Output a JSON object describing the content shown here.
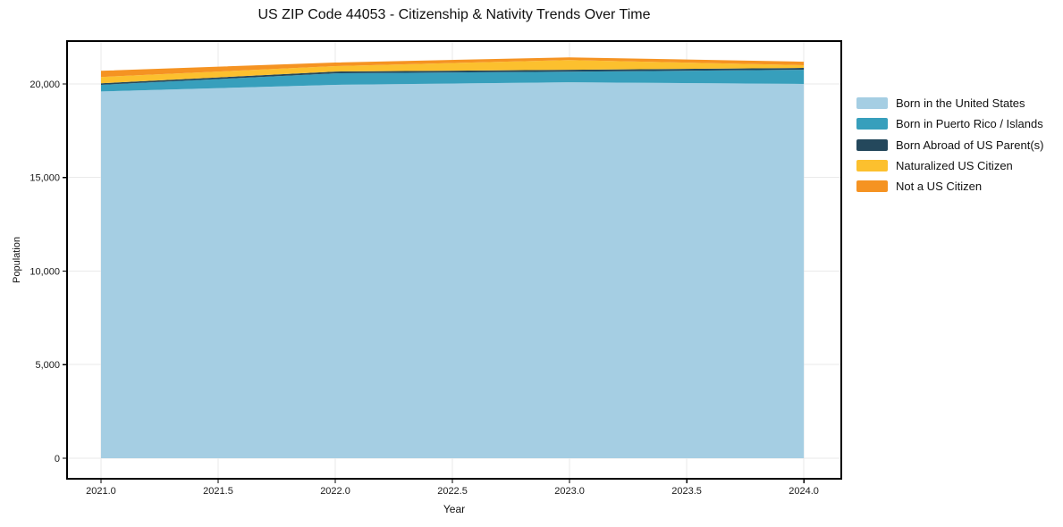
{
  "title": "US ZIP Code 44053 - Citizenship & Nativity Trends Over Time",
  "chart_data": {
    "type": "area",
    "stacked": true,
    "title": "US ZIP Code 44053 - Citizenship & Nativity Trends Over Time",
    "xlabel": "Year",
    "ylabel": "Population",
    "x": [
      2021,
      2022,
      2023,
      2024
    ],
    "series": [
      {
        "name": "Born in the United States",
        "color": "#a5cee3",
        "values": [
          19600,
          19950,
          20090,
          20000
        ]
      },
      {
        "name": "Born in Puerto Rico / Islands",
        "color": "#379fbc",
        "values": [
          350,
          620,
          570,
          760
        ]
      },
      {
        "name": "Born Abroad of US Parent(s)",
        "color": "#24485c",
        "values": [
          90,
          95,
          100,
          100
        ]
      },
      {
        "name": "Naturalized US Citizen",
        "color": "#fcc02e",
        "values": [
          330,
          290,
          520,
          140
        ]
      },
      {
        "name": "Not a US Citizen",
        "color": "#f59322",
        "values": [
          330,
          190,
          140,
          190
        ]
      }
    ],
    "x_tick_values": [
      2021.0,
      2021.5,
      2022.0,
      2022.5,
      2023.0,
      2023.5,
      2024.0
    ],
    "x_tick_labels": [
      "2021.0",
      "2021.5",
      "2022.0",
      "2022.5",
      "2023.0",
      "2023.5",
      "2024.0"
    ],
    "y_tick_values": [
      0,
      5000,
      10000,
      15000,
      20000
    ],
    "y_tick_labels": [
      "0",
      "5,000",
      "10,000",
      "15,000",
      "20,000"
    ],
    "x_range": [
      2020.855,
      2024.16
    ],
    "y_range": [
      -1098,
      22291
    ],
    "grid": true,
    "legend_position": "right",
    "colors": {
      "grid": "#eaeaea",
      "spine": "#000000",
      "tick_text": "#1a1a1a",
      "background": "#ffffff"
    }
  }
}
